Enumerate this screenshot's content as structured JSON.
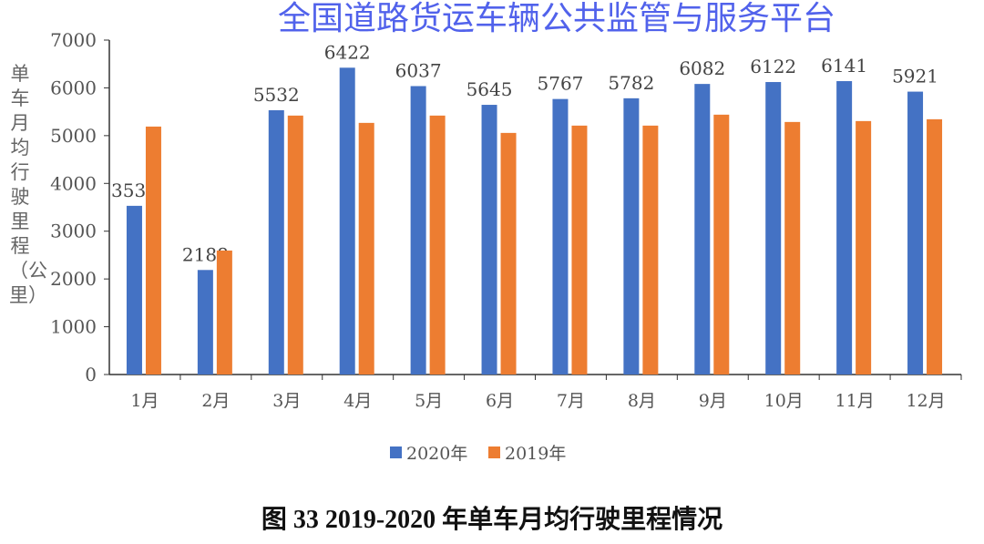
{
  "chart_data": {
    "type": "bar",
    "title": "图 33  2019-2020 年单车月均行驶里程情况",
    "ylabel": "单车月均行驶里程（公里）",
    "xlabel": "",
    "categories": [
      "1月",
      "2月",
      "3月",
      "4月",
      "5月",
      "6月",
      "7月",
      "8月",
      "9月",
      "10月",
      "11月",
      "12月"
    ],
    "ylim": [
      0,
      7000
    ],
    "yticks": [
      0,
      1000,
      2000,
      3000,
      4000,
      5000,
      6000,
      7000
    ],
    "grid": false,
    "legend_position": "bottom",
    "series": [
      {
        "name": "2020年",
        "color": "#4472c4",
        "values": [
          3531,
          2188,
          5532,
          6422,
          6037,
          5645,
          5767,
          5782,
          6082,
          6122,
          6141,
          5921
        ],
        "labeled": true
      },
      {
        "name": "2019年",
        "color": "#ed7d31",
        "values": [
          5190,
          2595,
          5420,
          5267,
          5420,
          5057,
          5210,
          5210,
          5439,
          5286,
          5305,
          5343
        ],
        "labeled": false
      }
    ]
  },
  "watermark": "全国道路货运车辆公共监管与服务平台"
}
